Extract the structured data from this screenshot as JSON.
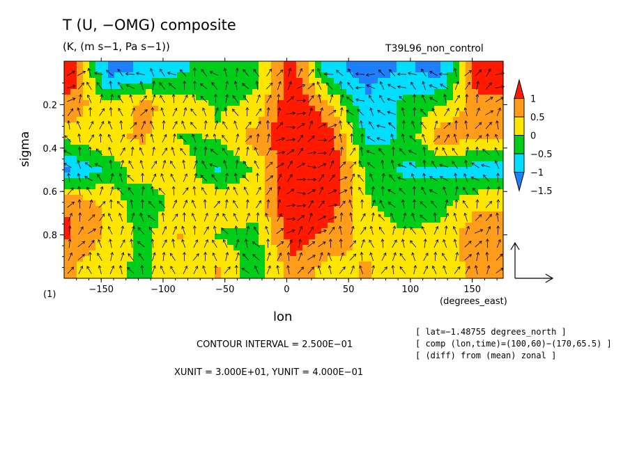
{
  "title": "T (U, −OMG) composite",
  "subtitle": "(K, (m s−1, Pa s−1))",
  "run_label": "T39L96_non_control",
  "frame_label": "(1)",
  "annotations": {
    "contour_interval": "CONTOUR INTERVAL = 2.500E−01",
    "units": "XUNIT = 3.000E+01, YUNIT = 4.000E−01",
    "info": [
      "[ lat=−1.48755 degrees_north ]",
      "[ comp (lon,time)=(100,60)−(170,65.5) ]",
      "[ (diff) from (mean) zonal ]"
    ]
  },
  "colors": {
    "levels": [
      "#1f80ff",
      "#00ddff",
      "#00cc1a",
      "#ffe600",
      "#ff9d1a",
      "#ff1a00"
    ]
  },
  "chart_data": {
    "type": "heatmap",
    "xlabel": "lon",
    "xunit_label": "(degrees_east)",
    "ylabel": "sigma",
    "xlim": [
      -180,
      175
    ],
    "ylim": [
      1.0,
      0.0
    ],
    "x_ticks": [
      -150,
      -100,
      -50,
      0,
      50,
      100,
      150
    ],
    "x_tick_labels": [
      "−150",
      "−100",
      "−50",
      "0",
      "50",
      "100",
      "150"
    ],
    "y_ticks": [
      0.2,
      0.4,
      0.6,
      0.8
    ],
    "y_tick_labels": [
      "0.2",
      "0.4",
      "0.6",
      "0.8"
    ],
    "colorbar": {
      "labels": [
        "1",
        "0.5",
        "0",
        "−0.5",
        "−1",
        "−1.5"
      ],
      "bounds": [
        -1.75,
        -1.25,
        -0.75,
        -0.25,
        0.25,
        0.75,
        1.25
      ]
    },
    "lon": [
      -175,
      -145,
      -115,
      -85,
      -55,
      -25,
      5,
      35,
      65,
      95,
      125,
      155
    ],
    "sigma": [
      0.05,
      0.2,
      0.35,
      0.5,
      0.65,
      0.8,
      0.95
    ],
    "values": [
      [
        1.2,
        -1.4,
        -1.2,
        -0.8,
        -0.6,
        -0.3,
        1.0,
        -1.1,
        -1.4,
        -1.2,
        -1.4,
        1.2
      ],
      [
        0.6,
        -0.2,
        0.4,
        0.0,
        -0.3,
        -0.2,
        1.3,
        0.3,
        -1.2,
        -0.6,
        -0.3,
        0.6
      ],
      [
        -0.1,
        0.2,
        0.3,
        -0.3,
        -0.2,
        0.5,
        1.3,
        1.0,
        -0.9,
        -0.7,
        0.6,
        0.3
      ],
      [
        -1.3,
        -0.6,
        0.1,
        0.0,
        -0.8,
        -0.2,
        1.4,
        1.2,
        -0.4,
        -0.8,
        -0.9,
        -1.0
      ],
      [
        0.7,
        0.1,
        -0.7,
        0.1,
        0.2,
        0.0,
        1.3,
        1.0,
        -0.2,
        -0.6,
        -0.4,
        0.1
      ],
      [
        0.8,
        0.2,
        -0.4,
        0.3,
        -0.3,
        -0.4,
        1.1,
        0.6,
        0.0,
        -0.2,
        -0.1,
        0.7
      ],
      [
        0.3,
        -0.2,
        -0.3,
        0.0,
        0.3,
        -0.6,
        0.5,
        0.1,
        0.3,
        -0.1,
        0.0,
        0.4
      ]
    ]
  }
}
